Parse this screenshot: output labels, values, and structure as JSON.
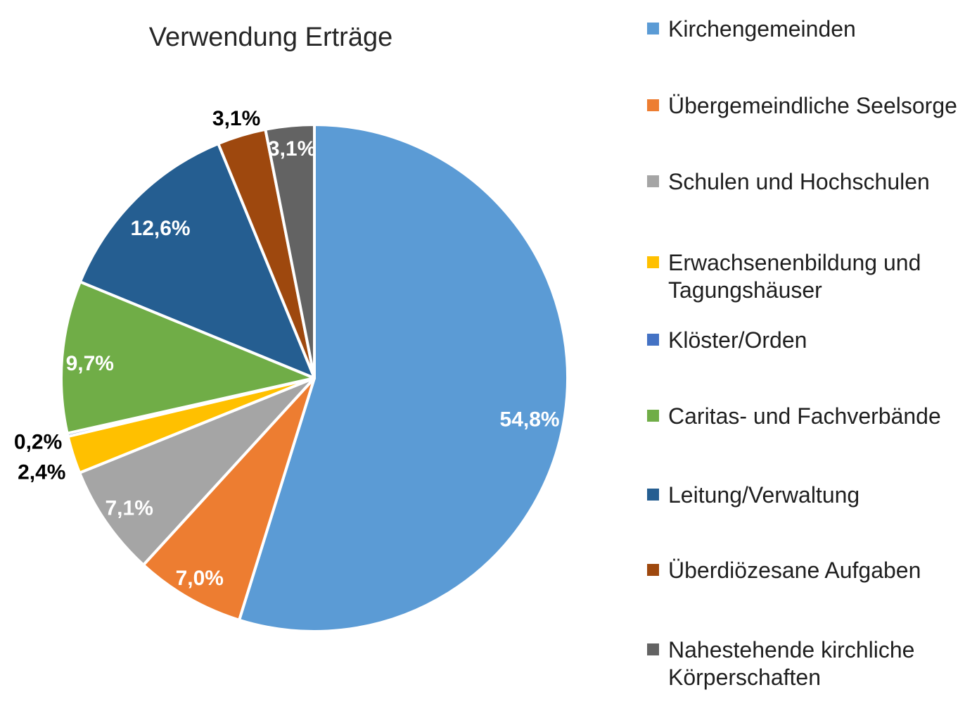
{
  "chart_data": {
    "type": "pie",
    "title": "Verwendung Erträge",
    "categories": [
      "Kirchengemeinden",
      "Übergemeindliche Seelsorge",
      "Schulen und Hochschulen",
      "Erwachsenenbildung und Tagungshäuser",
      "Klöster/Orden",
      "Caritas- und Fachverbände",
      "Leitung/Verwaltung",
      "Überdiözesane Aufgaben",
      "Nahestehende kirchliche Körperschaften"
    ],
    "values": [
      54.8,
      7.0,
      7.1,
      2.4,
      0.2,
      9.7,
      12.6,
      3.1,
      3.1
    ],
    "data_labels": [
      "54,8%",
      "7,0%",
      "7,1%",
      "2,4%",
      "0,2%",
      "9,7%",
      "12,6%",
      "3,1%",
      "3,1%"
    ],
    "colors": [
      "#5B9BD5",
      "#ED7D31",
      "#A5A5A5",
      "#FFC000",
      "#4472C4",
      "#70AD47",
      "#255E91",
      "#9E480E",
      "#636363"
    ],
    "slice_border_color": "#FFFFFF",
    "label_color_inside": "#FFFFFF",
    "label_color_outside": "#000000",
    "start_angle_deg": 0,
    "direction": "clockwise",
    "legend_position": "right",
    "background_color": "#FFFFFF"
  }
}
